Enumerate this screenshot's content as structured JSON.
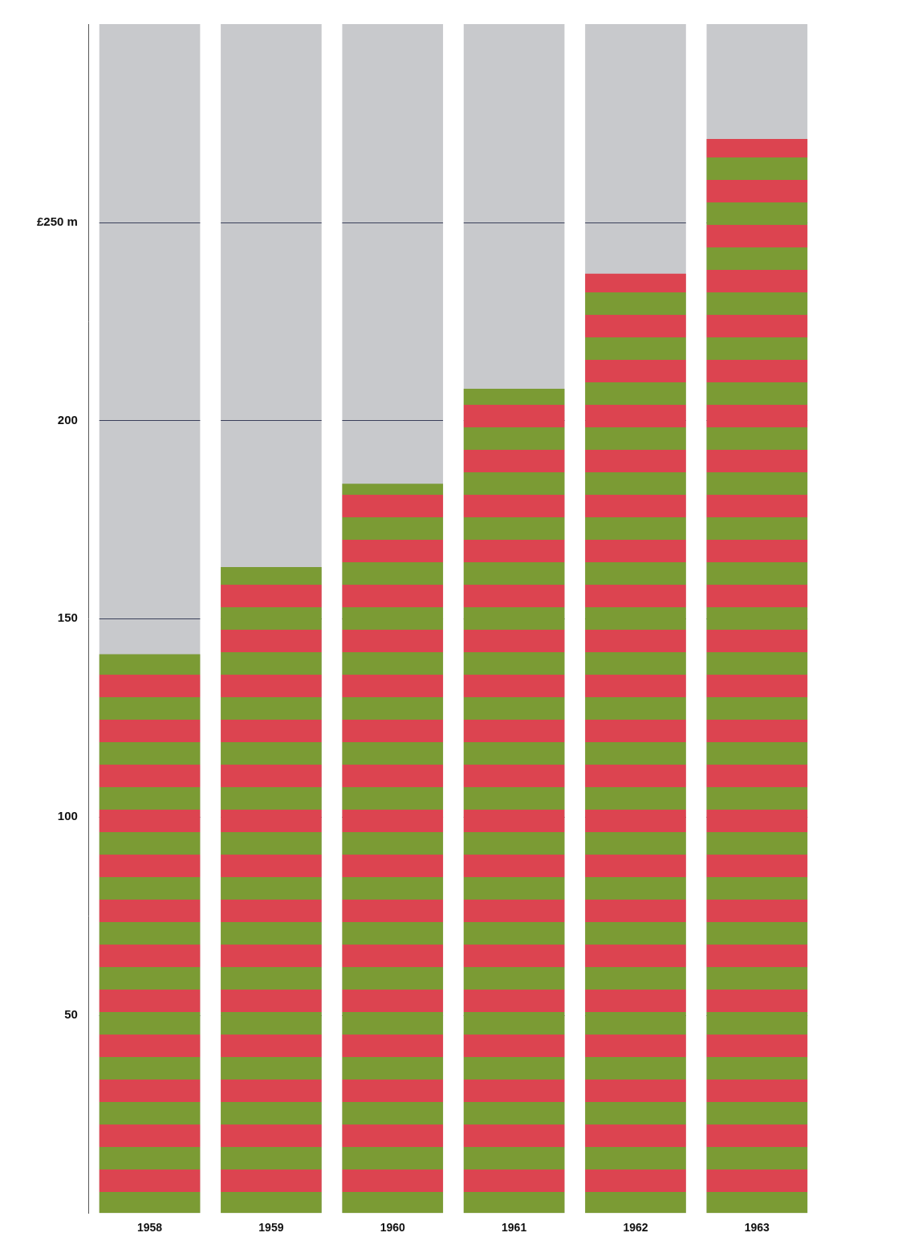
{
  "chart_data": {
    "type": "bar",
    "categories": [
      "1958",
      "1959",
      "1960",
      "1961",
      "1962",
      "1963"
    ],
    "values": [
      141,
      163,
      184,
      208,
      237,
      271
    ],
    "color": "#dc4450",
    "ylim": [
      0,
      300
    ],
    "yticks": [
      50,
      100,
      150,
      200,
      {
        "value": 250,
        "label": "£250 m"
      }
    ],
    "grid": true
  }
}
